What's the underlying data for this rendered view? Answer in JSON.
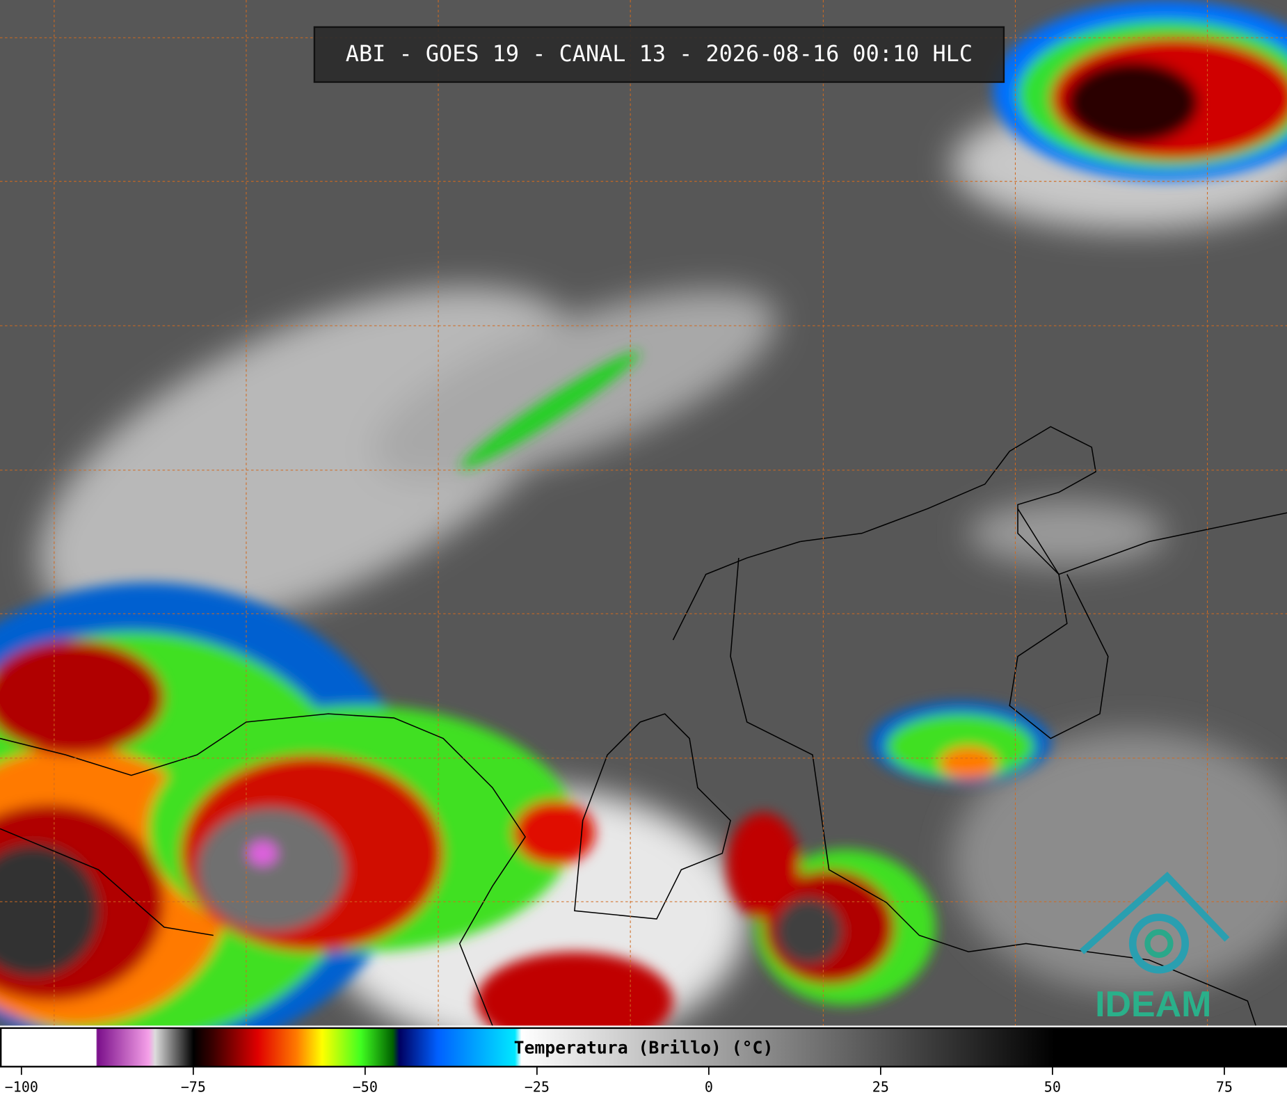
{
  "header": {
    "title": "ABI - GOES 19 - CANAL 13 - 2026-08-16 00:10 HLC"
  },
  "colorbar": {
    "label": "Temperatura (Brillo) (°C)",
    "range": [
      -103,
      84
    ],
    "ticks": [
      {
        "value": -100,
        "label": "−100"
      },
      {
        "value": -75,
        "label": "−75"
      },
      {
        "value": -50,
        "label": "−50"
      },
      {
        "value": -25,
        "label": "−25"
      },
      0,
      25,
      50,
      75
    ]
  },
  "logo": {
    "text": "IDEAM"
  }
}
